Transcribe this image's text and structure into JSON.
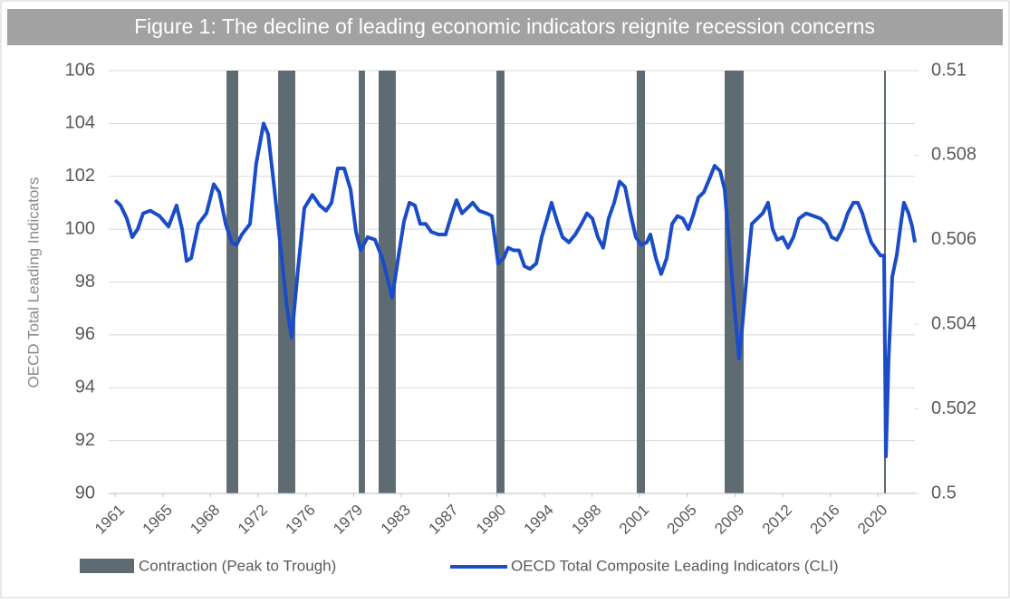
{
  "chart_data": {
    "type": "line",
    "title": "Figure 1: The decline of leading economic indicators reignite recession concerns",
    "ylabel": "OECD Total Leading Indicators",
    "x": [
      1961.0,
      1961.41,
      1961.89,
      1962.31,
      1962.73,
      1963.15,
      1963.7,
      1964.4,
      1965.1,
      1965.72,
      1966.14,
      1966.49,
      1966.84,
      1967.4,
      1968.02,
      1968.58,
      1969.0,
      1969.49,
      1969.97,
      1970.32,
      1970.74,
      1971.37,
      1971.85,
      1972.41,
      1972.76,
      1973.25,
      1973.74,
      1974.22,
      1974.57,
      1975.06,
      1975.55,
      1976.17,
      1976.73,
      1977.22,
      1977.64,
      1978.12,
      1978.61,
      1979.1,
      1979.52,
      1979.87,
      1980.42,
      1980.98,
      1981.54,
      1981.96,
      1982.3,
      1982.79,
      1983.21,
      1983.63,
      1984.05,
      1984.46,
      1984.88,
      1985.3,
      1985.86,
      1986.41,
      1986.9,
      1987.25,
      1987.67,
      1988.09,
      1988.5,
      1988.99,
      1989.55,
      1989.97,
      1990.45,
      1990.87,
      1991.22,
      1991.64,
      1992.06,
      1992.47,
      1992.89,
      1993.38,
      1993.8,
      1994.22,
      1994.56,
      1994.98,
      1995.4,
      1995.89,
      1996.38,
      1996.86,
      1997.28,
      1997.7,
      1998.12,
      1998.53,
      1998.95,
      1999.37,
      1999.79,
      2000.21,
      2000.62,
      2001.04,
      2001.46,
      2001.88,
      2002.16,
      2002.58,
      2002.99,
      2003.41,
      2003.83,
      2004.25,
      2004.66,
      2005.08,
      2005.43,
      2005.85,
      2006.27,
      2006.69,
      2007.1,
      2007.52,
      2007.87,
      2008.29,
      2008.71,
      2008.98,
      2009.26,
      2009.61,
      2009.96,
      2010.38,
      2010.8,
      2011.21,
      2011.56,
      2011.91,
      2012.33,
      2012.75,
      2013.16,
      2013.58,
      2014.14,
      2014.7,
      2015.25,
      2015.67,
      2016.09,
      2016.51,
      2016.93,
      2017.34,
      2017.76,
      2018.11,
      2018.46,
      2018.81,
      2019.15,
      2019.57,
      2019.85,
      2020.13,
      2020.27,
      2020.48,
      2020.76,
      2021.1,
      2021.45,
      2021.66,
      2022.01,
      2022.29,
      2022.5
    ],
    "series": [
      {
        "name": "OECD Total Composite Leading Indicators (CLI)",
        "color": "#1a4cc8",
        "values": [
          101.1,
          100.9,
          100.4,
          99.7,
          100.0,
          100.6,
          100.7,
          100.5,
          100.1,
          100.9,
          100.0,
          98.8,
          98.9,
          100.2,
          100.6,
          101.7,
          101.4,
          100.2,
          99.5,
          99.4,
          99.8,
          100.2,
          102.5,
          104.0,
          103.6,
          101.5,
          99.2,
          97.0,
          95.9,
          98.5,
          100.8,
          101.3,
          100.9,
          100.7,
          101.0,
          102.3,
          102.3,
          101.5,
          99.9,
          99.2,
          99.7,
          99.6,
          98.9,
          98.1,
          97.4,
          99.0,
          100.3,
          101.0,
          100.9,
          100.2,
          100.2,
          99.9,
          99.8,
          99.8,
          100.6,
          101.1,
          100.6,
          100.8,
          101.0,
          100.7,
          100.6,
          100.5,
          98.7,
          98.9,
          99.3,
          99.2,
          99.2,
          98.6,
          98.5,
          98.7,
          99.7,
          100.4,
          101.0,
          100.3,
          99.7,
          99.5,
          99.8,
          100.2,
          100.6,
          100.4,
          99.7,
          99.3,
          100.4,
          101.0,
          101.8,
          101.6,
          100.6,
          99.7,
          99.4,
          99.5,
          99.8,
          98.9,
          98.3,
          98.9,
          100.2,
          100.5,
          100.4,
          100.0,
          100.5,
          101.2,
          101.4,
          101.9,
          102.4,
          102.2,
          101.5,
          99.0,
          96.6,
          95.1,
          96.5,
          98.5,
          100.2,
          100.4,
          100.6,
          101.0,
          100.0,
          99.6,
          99.7,
          99.3,
          99.7,
          100.4,
          100.6,
          100.5,
          100.4,
          100.2,
          99.7,
          99.6,
          100.0,
          100.6,
          101.0,
          101.0,
          100.6,
          100.0,
          99.5,
          99.2,
          99.0,
          99.0,
          91.4,
          95.1,
          98.2,
          99.0,
          100.3,
          101.0,
          100.6,
          100.1,
          99.5
        ]
      }
    ],
    "recessions": {
      "name": "Contraction (Peak to Trough)",
      "color": "#5f6b73",
      "periods": [
        [
          1969.56,
          1970.46
        ],
        [
          1973.53,
          1974.85
        ],
        [
          1979.73,
          1980.21
        ],
        [
          1981.26,
          1982.58
        ],
        [
          1990.32,
          1990.94
        ],
        [
          2001.11,
          2001.74
        ],
        [
          2007.87,
          2009.33
        ],
        [
          2020.13,
          2020.27
        ]
      ]
    },
    "xlim": [
      1960.5,
      2022.5
    ],
    "xticks": [
      {
        "value": 1961,
        "label": "1961"
      },
      {
        "value": 1964.67,
        "label": "1965"
      },
      {
        "value": 1968.33,
        "label": "1968"
      },
      {
        "value": 1972,
        "label": "1972"
      },
      {
        "value": 1975.67,
        "label": "1976"
      },
      {
        "value": 1979.33,
        "label": "1979"
      },
      {
        "value": 1983,
        "label": "1983"
      },
      {
        "value": 1986.67,
        "label": "1987"
      },
      {
        "value": 1990.33,
        "label": "1990"
      },
      {
        "value": 1994,
        "label": "1994"
      },
      {
        "value": 1997.67,
        "label": "1998"
      },
      {
        "value": 2001.33,
        "label": "2001"
      },
      {
        "value": 2005,
        "label": "2005"
      },
      {
        "value": 2008.67,
        "label": "2009"
      },
      {
        "value": 2012.33,
        "label": "2012"
      },
      {
        "value": 2016,
        "label": "2016"
      },
      {
        "value": 2019.67,
        "label": "2020"
      }
    ],
    "ylim": [
      90,
      106
    ],
    "yticks": [
      90,
      92,
      94,
      96,
      98,
      100,
      102,
      104,
      106
    ],
    "y2lim": [
      0.5,
      0.51
    ],
    "y2ticks": [
      0.5,
      0.502,
      0.504,
      0.506,
      0.508,
      0.51
    ],
    "grid": true
  }
}
